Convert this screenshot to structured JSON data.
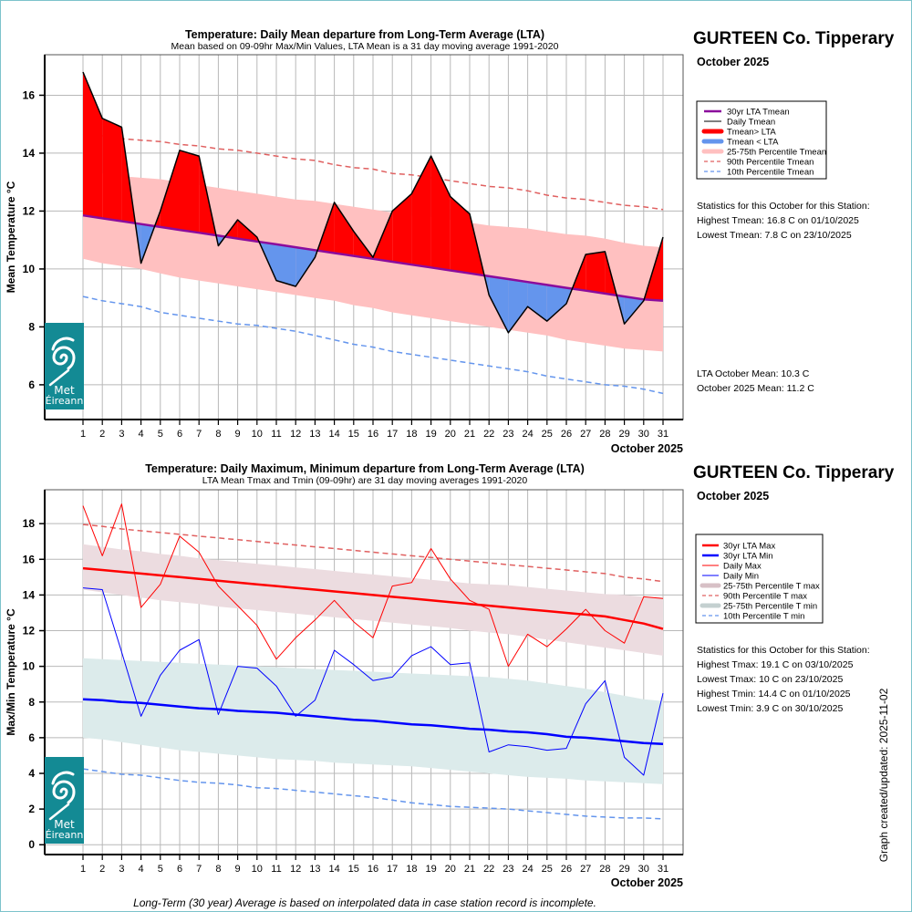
{
  "page": {
    "footnote": "Long-Term (30 year) Average is based on interpolated data in case station record is incomplete.",
    "stamp": "Graph created/updated:  2025-11-02"
  },
  "logo": {
    "line1": "Met",
    "line2": "Éireann"
  },
  "colors": {
    "lta_mean": "#8b0b9c",
    "above": "#ff0000",
    "below": "#6495ed",
    "band_mean": "#ffc0c0",
    "p90": "#e06060",
    "p10": "#6495ed",
    "lta_max": "#ff0000",
    "lta_min": "#0000ff",
    "daily_max": "#ff0000",
    "daily_min": "#0000ff",
    "band_max": "#ecdce0",
    "band_min": "#dcebeb",
    "grid": "#b8b8b8",
    "logo": "#138a94"
  },
  "chart_data": [
    {
      "type": "area",
      "title": "Temperature: Daily Mean departure from Long-Term Average (LTA)",
      "subtitle": "Mean based on 09-09hr Max/Min Values, LTA Mean is a 31 day moving average 1991-2020",
      "xlabel": "October 2025",
      "ylabel": "Mean Temperature °C",
      "ylim": [
        4.8,
        17.4
      ],
      "yticks": [
        6,
        8,
        10,
        12,
        14,
        16
      ],
      "x": [
        1,
        2,
        3,
        4,
        5,
        6,
        7,
        8,
        9,
        10,
        11,
        12,
        13,
        14,
        15,
        16,
        17,
        18,
        19,
        20,
        21,
        22,
        23,
        24,
        25,
        26,
        27,
        28,
        29,
        30,
        31
      ],
      "grid": true,
      "legend_position": "right",
      "station": "GURTEEN Co. Tipperary",
      "month": "October 2025",
      "legend": [
        "30yr LTA Tmean",
        "Daily Tmean",
        "Tmean> LTA",
        "Tmean < LTA",
        "25-75th Percentile Tmean",
        "90th Percentile Tmean",
        "10th Percentile Tmean"
      ],
      "stats_heading": "Statistics for this October for this Station:",
      "stats": [
        "Highest Tmean: 16.8 C on 01/10/2025",
        "Lowest Tmean: 7.8 C on 23/10/2025"
      ],
      "means": [
        "LTA October Mean: 10.3 C",
        "October 2025 Mean: 11.2 C"
      ],
      "series": [
        {
          "name": "Daily Tmean",
          "values": [
            16.8,
            15.2,
            14.9,
            10.2,
            12.0,
            14.1,
            13.9,
            10.8,
            11.7,
            11.1,
            9.6,
            9.4,
            10.4,
            12.3,
            11.3,
            10.4,
            12.0,
            12.6,
            13.9,
            12.5,
            11.9,
            9.1,
            7.8,
            8.7,
            8.2,
            8.8,
            10.5,
            10.6,
            8.1,
            8.9,
            11.1
          ]
        },
        {
          "name": "30yr LTA Tmean",
          "values": [
            11.85,
            11.75,
            11.65,
            11.55,
            11.45,
            11.35,
            11.25,
            11.15,
            11.05,
            10.95,
            10.85,
            10.75,
            10.65,
            10.55,
            10.45,
            10.35,
            10.25,
            10.15,
            10.05,
            9.95,
            9.85,
            9.75,
            9.65,
            9.55,
            9.45,
            9.35,
            9.25,
            9.15,
            9.05,
            8.95,
            8.9
          ]
        },
        {
          "name": "90th Percentile Tmean",
          "values": [
            14.65,
            14.6,
            14.5,
            14.45,
            14.4,
            14.3,
            14.25,
            14.15,
            14.1,
            14.0,
            13.9,
            13.8,
            13.75,
            13.6,
            13.5,
            13.45,
            13.3,
            13.25,
            13.15,
            13.05,
            12.95,
            12.85,
            12.8,
            12.7,
            12.55,
            12.45,
            12.4,
            12.3,
            12.2,
            12.15,
            12.05
          ]
        },
        {
          "name": "10th Percentile Tmean",
          "values": [
            9.05,
            8.9,
            8.8,
            8.7,
            8.5,
            8.4,
            8.3,
            8.2,
            8.1,
            8.05,
            7.95,
            7.85,
            7.7,
            7.55,
            7.4,
            7.3,
            7.15,
            7.05,
            6.95,
            6.85,
            6.75,
            6.65,
            6.55,
            6.45,
            6.3,
            6.2,
            6.1,
            6.0,
            5.95,
            5.85,
            5.7
          ]
        },
        {
          "name": "75th Percentile Tmean",
          "values": [
            13.35,
            13.3,
            13.2,
            13.15,
            13.1,
            13.0,
            12.9,
            12.8,
            12.7,
            12.6,
            12.5,
            12.4,
            12.35,
            12.25,
            12.15,
            12.05,
            11.95,
            11.85,
            11.8,
            11.7,
            11.6,
            11.5,
            11.45,
            11.4,
            11.3,
            11.2,
            11.15,
            11.05,
            10.9,
            10.8,
            10.75
          ]
        },
        {
          "name": "25th Percentile Tmean",
          "values": [
            10.35,
            10.2,
            10.1,
            10.0,
            9.85,
            9.7,
            9.6,
            9.5,
            9.4,
            9.3,
            9.2,
            9.1,
            9.0,
            8.9,
            8.75,
            8.65,
            8.5,
            8.4,
            8.3,
            8.2,
            8.1,
            8.0,
            7.9,
            7.8,
            7.7,
            7.55,
            7.45,
            7.35,
            7.25,
            7.2,
            7.15
          ]
        }
      ]
    },
    {
      "type": "line",
      "title": "Temperature: Daily Maximum, Minimum departure from Long-Term Average (LTA)",
      "subtitle": "LTA Mean Tmax and Tmin (09-09hr) are 31 day moving averages 1991-2020",
      "xlabel": "October 2025",
      "ylabel": "Max/Min Temperature °C",
      "ylim": [
        -0.55,
        19.9
      ],
      "yticks": [
        0,
        2,
        4,
        6,
        8,
        10,
        12,
        14,
        16,
        18
      ],
      "x": [
        1,
        2,
        3,
        4,
        5,
        6,
        7,
        8,
        9,
        10,
        11,
        12,
        13,
        14,
        15,
        16,
        17,
        18,
        19,
        20,
        21,
        22,
        23,
        24,
        25,
        26,
        27,
        28,
        29,
        30,
        31
      ],
      "grid": true,
      "legend_position": "right",
      "station": "GURTEEN Co. Tipperary",
      "month": "October 2025",
      "legend": [
        "30yr LTA Max",
        "30yr LTA Min",
        "Daily Max",
        "Daily Min",
        "25-75th Percentile T max",
        "90th Percentile T max",
        "25-75th Percentile T min",
        "10th Percentile T min"
      ],
      "stats_heading": "Statistics for this October for this Station:",
      "stats": [
        "Highest Tmax: 19.1 C on 03/10/2025",
        "Lowest Tmax: 10 C on 23/10/2025",
        "Highest Tmin: 14.4 C on 01/10/2025",
        "Lowest Tmin: 3.9 C on 30/10/2025"
      ],
      "series": [
        {
          "name": "Daily Max",
          "values": [
            19.0,
            16.2,
            19.1,
            13.3,
            14.6,
            17.3,
            16.4,
            14.5,
            13.4,
            12.3,
            10.4,
            11.6,
            12.6,
            13.7,
            12.5,
            11.6,
            14.5,
            14.7,
            16.6,
            14.9,
            13.7,
            13.2,
            10.0,
            11.8,
            11.1,
            12.1,
            13.2,
            12.0,
            11.3,
            13.9,
            13.8
          ]
        },
        {
          "name": "Daily Min",
          "values": [
            14.4,
            14.3,
            10.8,
            7.2,
            9.5,
            10.9,
            11.5,
            7.3,
            10.0,
            9.9,
            8.9,
            7.2,
            8.1,
            10.9,
            10.1,
            9.2,
            9.4,
            10.6,
            11.1,
            10.1,
            10.2,
            5.2,
            5.6,
            5.5,
            5.3,
            5.4,
            7.9,
            9.2,
            4.9,
            3.9,
            8.5
          ]
        },
        {
          "name": "30yr LTA Max",
          "values": [
            15.5,
            15.4,
            15.3,
            15.2,
            15.1,
            15.0,
            14.9,
            14.8,
            14.7,
            14.6,
            14.5,
            14.4,
            14.3,
            14.2,
            14.1,
            14.0,
            13.9,
            13.8,
            13.7,
            13.6,
            13.5,
            13.4,
            13.3,
            13.2,
            13.1,
            13.0,
            12.9,
            12.8,
            12.6,
            12.4,
            12.1
          ]
        },
        {
          "name": "30yr LTA Min",
          "values": [
            8.15,
            8.1,
            8.0,
            7.95,
            7.85,
            7.75,
            7.65,
            7.6,
            7.5,
            7.45,
            7.4,
            7.3,
            7.2,
            7.1,
            7.0,
            6.95,
            6.85,
            6.75,
            6.7,
            6.6,
            6.5,
            6.45,
            6.35,
            6.3,
            6.2,
            6.05,
            6.0,
            5.9,
            5.8,
            5.7,
            5.65
          ]
        },
        {
          "name": "90th Percentile T max",
          "values": [
            17.95,
            17.85,
            17.7,
            17.6,
            17.5,
            17.4,
            17.3,
            17.2,
            17.1,
            17.0,
            16.9,
            16.8,
            16.7,
            16.6,
            16.5,
            16.4,
            16.3,
            16.2,
            16.1,
            16.0,
            15.9,
            15.8,
            15.7,
            15.6,
            15.5,
            15.4,
            15.3,
            15.2,
            15.0,
            14.9,
            14.75
          ]
        },
        {
          "name": "10th Percentile T min",
          "values": [
            4.25,
            4.1,
            3.95,
            3.9,
            3.75,
            3.6,
            3.5,
            3.45,
            3.35,
            3.2,
            3.15,
            3.05,
            2.95,
            2.85,
            2.75,
            2.65,
            2.5,
            2.35,
            2.25,
            2.15,
            2.1,
            2.05,
            2.0,
            1.9,
            1.8,
            1.7,
            1.6,
            1.55,
            1.5,
            1.5,
            1.45
          ]
        },
        {
          "name": "75th Percentile T max",
          "values": [
            16.85,
            16.7,
            16.55,
            16.45,
            16.3,
            16.2,
            16.05,
            15.95,
            15.85,
            15.75,
            15.65,
            15.55,
            15.45,
            15.35,
            15.25,
            15.15,
            15.05,
            14.95,
            14.85,
            14.75,
            14.65,
            14.6,
            14.55,
            14.45,
            14.35,
            14.25,
            14.15,
            14.05,
            14.0,
            13.9,
            13.85
          ]
        },
        {
          "name": "25th Percentile T max",
          "values": [
            14.3,
            14.15,
            14.0,
            13.85,
            13.7,
            13.6,
            13.5,
            13.35,
            13.25,
            13.15,
            13.05,
            12.95,
            12.85,
            12.75,
            12.65,
            12.55,
            12.45,
            12.35,
            12.25,
            12.15,
            12.0,
            11.9,
            11.8,
            11.65,
            11.5,
            11.35,
            11.2,
            11.05,
            10.9,
            10.75,
            10.6
          ]
        },
        {
          "name": "75th Percentile T min",
          "values": [
            10.45,
            10.4,
            10.35,
            10.3,
            10.25,
            10.2,
            10.15,
            10.1,
            10.05,
            10.0,
            9.95,
            9.9,
            9.85,
            9.8,
            9.75,
            9.7,
            9.65,
            9.6,
            9.55,
            9.5,
            9.45,
            9.4,
            9.3,
            9.2,
            9.05,
            8.9,
            8.75,
            8.55,
            8.35,
            8.15,
            8.05
          ]
        },
        {
          "name": "25th Percentile T min",
          "values": [
            6.0,
            5.9,
            5.75,
            5.6,
            5.45,
            5.3,
            5.2,
            5.1,
            5.0,
            4.9,
            4.8,
            4.75,
            4.7,
            4.6,
            4.55,
            4.5,
            4.45,
            4.4,
            4.3,
            4.2,
            4.1,
            4.0,
            3.9,
            3.8,
            3.75,
            3.7,
            3.6,
            3.55,
            3.5,
            3.45,
            3.4
          ]
        }
      ]
    }
  ]
}
